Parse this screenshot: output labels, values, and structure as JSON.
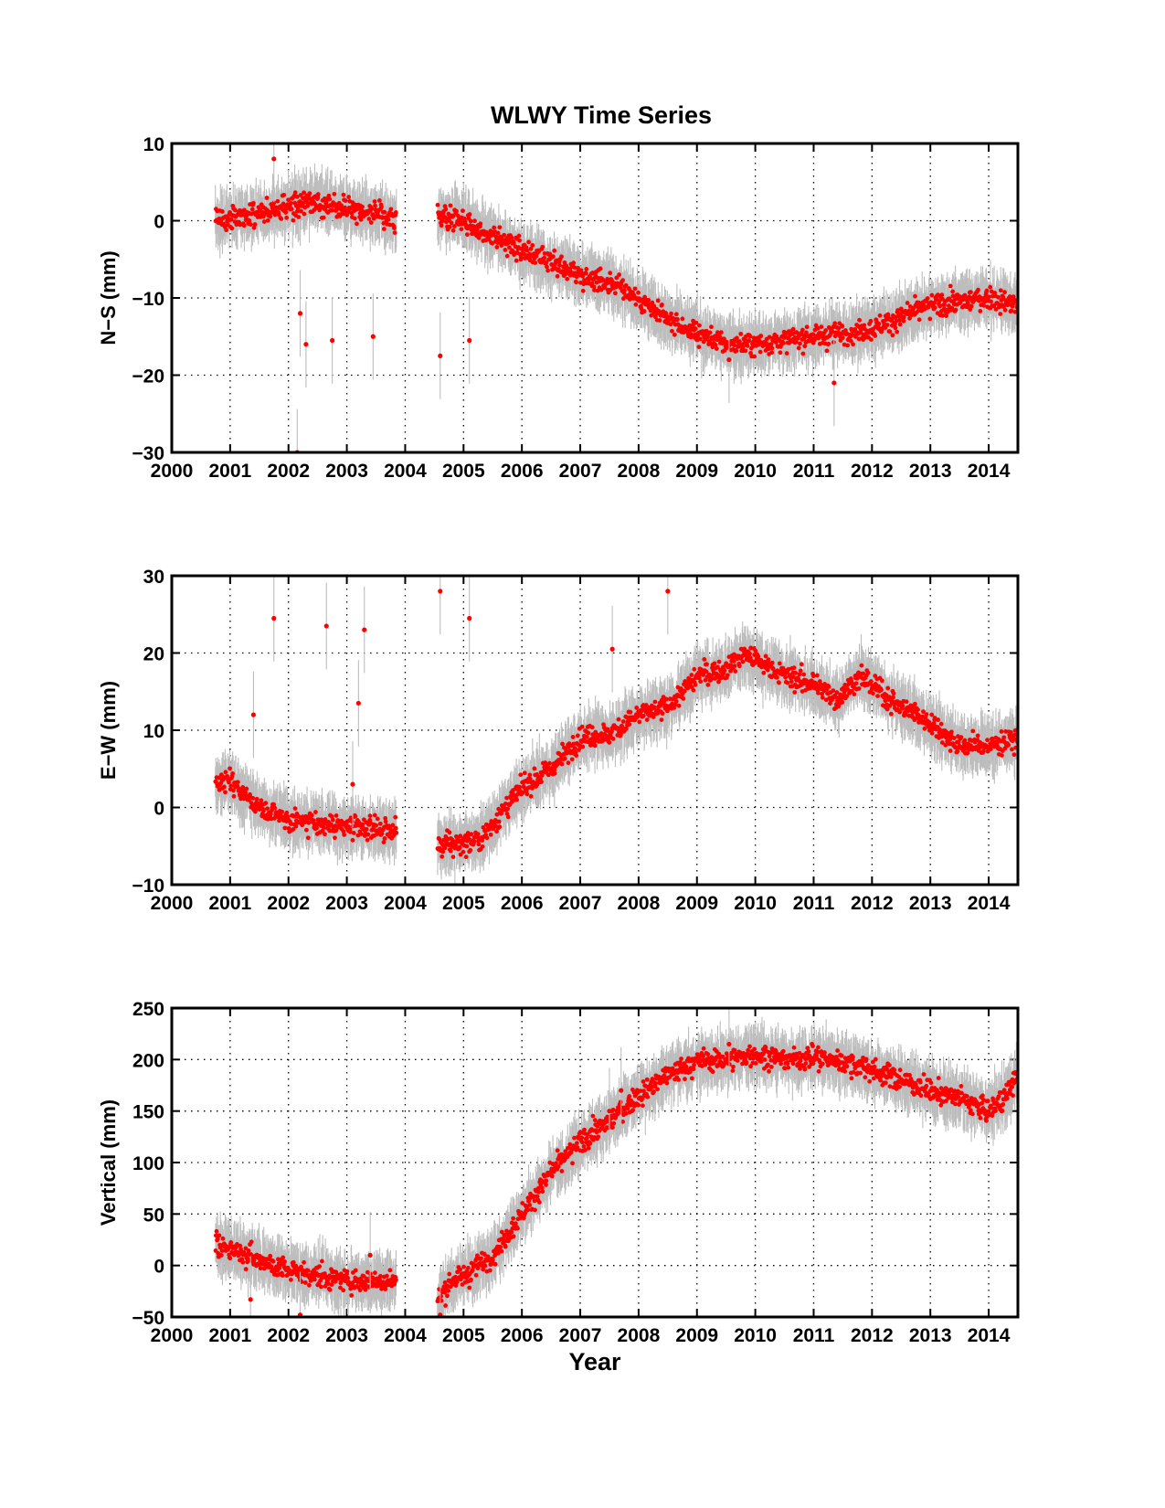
{
  "figure_title": "WLWY Time Series",
  "colors": {
    "points": "#ff0000",
    "error_bars": "#bdbdbd",
    "frame": "#000000"
  },
  "chart_data": [
    {
      "type": "scatter",
      "title": "WLWY Time Series",
      "xlabel": "",
      "ylabel": "N−S (mm)",
      "xlim": [
        2000,
        2014.5
      ],
      "ylim": [
        -30,
        10
      ],
      "xticks": [
        "2000",
        "2001",
        "2002",
        "2003",
        "2004",
        "2005",
        "2006",
        "2007",
        "2008",
        "2009",
        "2010",
        "2011",
        "2012",
        "2013",
        "2014"
      ],
      "yticks": [
        "10",
        "0",
        "−10",
        "−20",
        "−30"
      ],
      "grid": true,
      "error_bars": true,
      "data_gap": [
        2003.85,
        2004.55
      ],
      "trend": {
        "x": [
          2000.75,
          2001.5,
          2002.5,
          2003.5,
          2003.85,
          2004.55,
          2005.0,
          2006.0,
          2007.0,
          2007.7,
          2008.5,
          2009.5,
          2010.0,
          2011.0,
          2012.0,
          2013.0,
          2014.0,
          2014.5
        ],
        "y": [
          0,
          1,
          2.5,
          1,
          0,
          0.5,
          0,
          -4,
          -7,
          -8.5,
          -13,
          -16,
          -16,
          -15,
          -14,
          -11,
          -10,
          -11
        ]
      },
      "outliers": {
        "x": [
          2001.75,
          2002.15,
          2002.2,
          2002.3,
          2002.75,
          2003.45,
          2004.6,
          2005.1,
          2009.55,
          2011.35
        ],
        "y": [
          8,
          -30,
          -12,
          -16,
          -15.5,
          -15,
          -17.5,
          -15.5,
          -18,
          -21
        ]
      }
    },
    {
      "type": "scatter",
      "title": "",
      "xlabel": "",
      "ylabel": "E−W (mm)",
      "xlim": [
        2000,
        2014.5
      ],
      "ylim": [
        -10,
        30
      ],
      "xticks": [
        "2000",
        "2001",
        "2002",
        "2003",
        "2004",
        "2005",
        "2006",
        "2007",
        "2008",
        "2009",
        "2010",
        "2011",
        "2012",
        "2013",
        "2014"
      ],
      "yticks": [
        "30",
        "20",
        "10",
        "0",
        "−10"
      ],
      "grid": true,
      "error_bars": true,
      "data_gap": [
        2003.85,
        2004.55
      ],
      "trend": {
        "x": [
          2000.75,
          2001.0,
          2001.5,
          2002.0,
          2003.0,
          2003.85,
          2004.55,
          2005.0,
          2005.3,
          2006.0,
          2006.5,
          2007.0,
          2007.5,
          2008.0,
          2008.5,
          2009.0,
          2009.5,
          2009.8,
          2010.5,
          2011.0,
          2011.4,
          2011.8,
          2012.5,
          2013.0,
          2013.5,
          2014.0,
          2014.5
        ],
        "y": [
          3,
          3.5,
          0,
          -1.5,
          -2.5,
          -3,
          -5,
          -4.5,
          -4,
          2.5,
          5,
          9,
          9.5,
          12,
          13,
          17,
          18,
          20,
          17,
          16,
          14,
          17,
          13,
          11,
          8,
          8,
          9
        ]
      },
      "outliers": {
        "x": [
          2001.4,
          2001.75,
          2002.65,
          2003.1,
          2003.2,
          2003.3,
          2004.6,
          2005.1,
          2007.55,
          2008.5
        ],
        "y": [
          12,
          24.5,
          23.5,
          3,
          13.5,
          23,
          28,
          24.5,
          20.5,
          28
        ]
      }
    },
    {
      "type": "scatter",
      "title": "",
      "xlabel": "Year",
      "ylabel": "Vertical (mm)",
      "xlim": [
        2000,
        2014.5
      ],
      "ylim": [
        -50,
        250
      ],
      "xticks": [
        "2000",
        "2001",
        "2002",
        "2003",
        "2004",
        "2005",
        "2006",
        "2007",
        "2008",
        "2009",
        "2010",
        "2011",
        "2012",
        "2013",
        "2014"
      ],
      "yticks": [
        "250",
        "200",
        "150",
        "100",
        "50",
        "0",
        "−50"
      ],
      "grid": true,
      "error_bars": true,
      "data_gap": [
        2003.85,
        2004.55
      ],
      "trend": {
        "x": [
          2000.75,
          2001.0,
          2001.5,
          2002.0,
          2003.0,
          2003.85,
          2004.55,
          2004.8,
          2005.0,
          2005.5,
          2006.0,
          2006.5,
          2007.0,
          2007.5,
          2008.0,
          2008.5,
          2009.0,
          2009.5,
          2010.0,
          2010.5,
          2011.0,
          2011.5,
          2012.0,
          2012.5,
          2013.0,
          2013.5,
          2014.0,
          2014.3,
          2014.5
        ],
        "y": [
          20,
          15,
          5,
          -5,
          -15,
          -15,
          -35,
          -15,
          -10,
          10,
          50,
          90,
          120,
          140,
          165,
          185,
          198,
          200,
          205,
          200,
          202,
          198,
          190,
          180,
          170,
          163,
          150,
          165,
          185
        ]
      },
      "outliers": {
        "x": [
          2001.35,
          2002.2,
          2003.4,
          2004.6,
          2007.7,
          2007.5,
          2009.55
        ],
        "y": [
          -33,
          -48,
          10,
          -48,
          170,
          150,
          215
        ]
      }
    }
  ]
}
